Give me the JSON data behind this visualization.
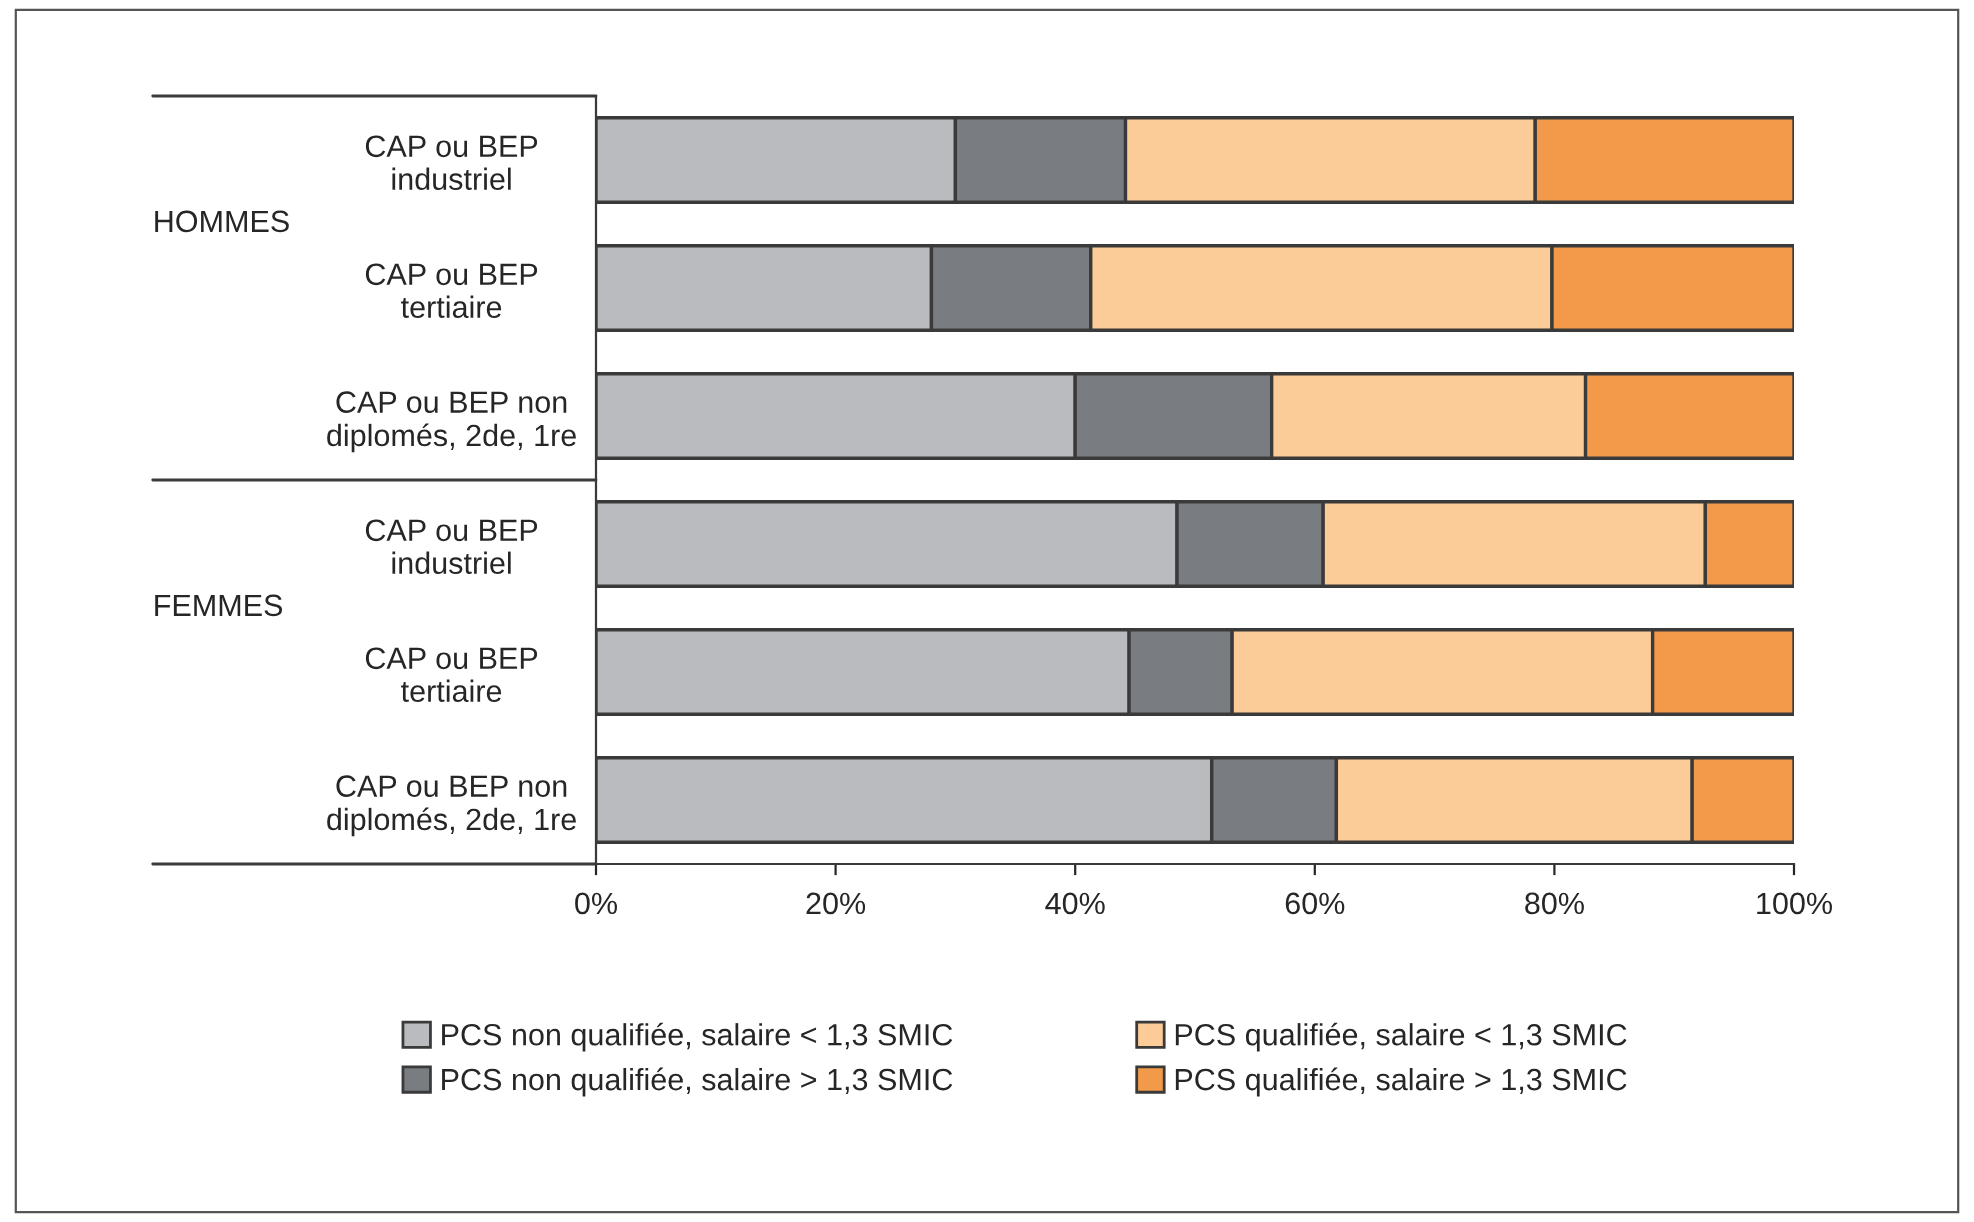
{
  "chart_data": {
    "type": "bar",
    "orientation": "horizontal",
    "stacked": true,
    "categories": [
      "CAP ou BEP\nindustriel",
      "CAP ou BEP\ntertiaire",
      "CAP ou BEP non\ndiplomés, 2de, 1re",
      "CAP ou BEP\nindustriel",
      "CAP ou BEP\ntertiaire",
      "CAP ou BEP non\ndiplomés, 2de, 1re"
    ],
    "series": [
      {
        "name": "PCS non qualifiée, salaire < 1,3 SMIC",
        "color": "#b9bbbf",
        "values": [
          30.0,
          28.0,
          40.0,
          48.5,
          44.5,
          51.4
        ]
      },
      {
        "name": "PCS non qualifiée, salaire > 1,3 SMIC",
        "color": "#797c80",
        "values": [
          14.2,
          13.3,
          16.4,
          12.2,
          8.6,
          10.4
        ]
      },
      {
        "name": "PCS qualifiée, salaire < 1,3 SMIC",
        "color": "#fbcb98",
        "values": [
          34.2,
          38.5,
          26.2,
          31.9,
          35.1,
          29.7
        ]
      },
      {
        "name": "PCS qualifiée, salaire > 1,3 SMIC",
        "color": "#f39a4a",
        "values": [
          21.6,
          20.2,
          17.4,
          7.4,
          11.8,
          8.5
        ]
      }
    ],
    "xlim": [
      0,
      100
    ],
    "xticks": [
      {
        "value": 0,
        "label": "0%"
      },
      {
        "value": 20,
        "label": "20%"
      },
      {
        "value": 40,
        "label": "40%"
      },
      {
        "value": 60,
        "label": "60%"
      },
      {
        "value": 80,
        "label": "80%"
      },
      {
        "value": 100,
        "label": "100%"
      }
    ],
    "annotations": [
      "HOMMES",
      "FEMMES"
    ],
    "legend": "bottom",
    "grid": false
  }
}
